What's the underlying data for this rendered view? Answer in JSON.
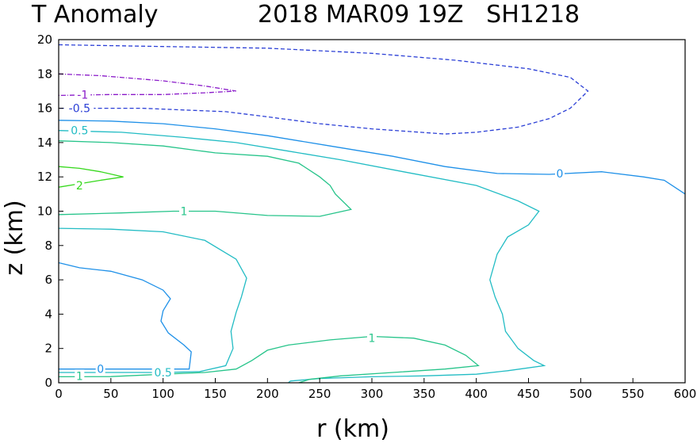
{
  "chart_data": {
    "type": "contour",
    "title_left": "T Anomaly",
    "title_right": "2018 MAR09 19Z   SH1218",
    "xlabel": "r (km)",
    "ylabel": "z (km)",
    "xlim": [
      0,
      600
    ],
    "ylim": [
      0,
      20
    ],
    "xticks": [
      "0",
      "50",
      "100",
      "150",
      "200",
      "250",
      "300",
      "350",
      "400",
      "450",
      "500",
      "550",
      "600"
    ],
    "yticks": [
      "0",
      "2",
      "4",
      "6",
      "8",
      "10",
      "12",
      "14",
      "16",
      "18",
      "20"
    ],
    "contours": [
      {
        "level": "-0.5",
        "color": "#2b3fd6",
        "dash": "5,3",
        "paths": [
          [
            [
              0,
              19.7
            ],
            [
              50,
              19.65
            ],
            [
              100,
              19.6
            ],
            [
              200,
              19.5
            ],
            [
              300,
              19.2
            ],
            [
              380,
              18.8
            ],
            [
              450,
              18.3
            ],
            [
              490,
              17.8
            ],
            [
              507,
              17.0
            ],
            [
              490,
              16.0
            ],
            [
              470,
              15.4
            ],
            [
              440,
              14.9
            ],
            [
              400,
              14.6
            ],
            [
              370,
              14.5
            ],
            [
              300,
              14.8
            ],
            [
              250,
              15.1
            ],
            [
              200,
              15.5
            ],
            [
              160,
              15.8
            ],
            [
              120,
              15.9
            ],
            [
              80,
              16.0
            ],
            [
              0,
              16.0
            ]
          ]
        ],
        "labels": [
          {
            "x": 20,
            "y": 16.0,
            "text": "-0.5"
          }
        ]
      },
      {
        "level": "-1",
        "color": "#8a1ac9",
        "dash": "6,2,1,2",
        "paths": [
          [
            [
              0,
              18.0
            ],
            [
              40,
              17.9
            ],
            [
              100,
              17.6
            ],
            [
              140,
              17.3
            ],
            [
              170,
              17.0
            ],
            [
              140,
              16.9
            ],
            [
              100,
              16.8
            ],
            [
              50,
              16.8
            ],
            [
              0,
              16.75
            ]
          ]
        ],
        "labels": [
          {
            "x": 23,
            "y": 16.8,
            "text": "-1"
          }
        ]
      },
      {
        "level": "0",
        "color": "#1e90e8",
        "dash": "",
        "paths": [
          [
            [
              0,
              15.3
            ],
            [
              50,
              15.25
            ],
            [
              100,
              15.1
            ],
            [
              150,
              14.8
            ],
            [
              200,
              14.4
            ],
            [
              260,
              13.8
            ],
            [
              320,
              13.2
            ],
            [
              370,
              12.6
            ],
            [
              420,
              12.2
            ],
            [
              470,
              12.15
            ],
            [
              520,
              12.3
            ],
            [
              560,
              12.0
            ],
            [
              580,
              11.8
            ],
            [
              600,
              11.0
            ]
          ],
          [
            [
              0,
              7.0
            ],
            [
              20,
              6.7
            ],
            [
              50,
              6.5
            ],
            [
              80,
              6.0
            ],
            [
              100,
              5.4
            ],
            [
              107,
              4.9
            ],
            [
              100,
              4.2
            ],
            [
              98,
              3.6
            ],
            [
              105,
              2.9
            ],
            [
              120,
              2.2
            ],
            [
              127,
              1.8
            ],
            [
              125,
              0.8
            ],
            [
              100,
              0.8
            ],
            [
              60,
              0.8
            ],
            [
              20,
              0.8
            ],
            [
              0,
              0.8
            ]
          ]
        ],
        "labels": [
          {
            "x": 480,
            "y": 12.2,
            "text": "0"
          },
          {
            "x": 40,
            "y": 0.8,
            "text": "0"
          }
        ]
      },
      {
        "level": "0.5",
        "color": "#22bcc4",
        "dash": "",
        "paths": [
          [
            [
              0,
              14.7
            ],
            [
              60,
              14.6
            ],
            [
              120,
              14.3
            ],
            [
              170,
              14.0
            ],
            [
              220,
              13.5
            ],
            [
              270,
              13.0
            ],
            [
              330,
              12.3
            ],
            [
              400,
              11.5
            ],
            [
              440,
              10.6
            ],
            [
              460,
              10.0
            ],
            [
              450,
              9.2
            ],
            [
              430,
              8.5
            ],
            [
              420,
              7.5
            ],
            [
              413,
              6.0
            ],
            [
              418,
              5.0
            ],
            [
              425,
              4.0
            ],
            [
              428,
              3.0
            ],
            [
              440,
              2.0
            ],
            [
              455,
              1.3
            ],
            [
              465,
              1.0
            ],
            [
              430,
              0.7
            ],
            [
              400,
              0.5
            ],
            [
              350,
              0.4
            ],
            [
              300,
              0.35
            ],
            [
              250,
              0.25
            ],
            [
              222,
              0.1
            ],
            [
              220,
              0
            ]
          ],
          [
            [
              0,
              9.0
            ],
            [
              50,
              8.95
            ],
            [
              100,
              8.8
            ],
            [
              140,
              8.3
            ],
            [
              170,
              7.2
            ],
            [
              180,
              6.1
            ],
            [
              175,
              5.0
            ],
            [
              170,
              4.1
            ],
            [
              165,
              3.0
            ],
            [
              167,
              2.0
            ],
            [
              160,
              1.0
            ],
            [
              135,
              0.65
            ],
            [
              100,
              0.6
            ],
            [
              50,
              0.6
            ],
            [
              0,
              0.6
            ]
          ]
        ],
        "labels": [
          {
            "x": 20,
            "y": 14.7,
            "text": "0.5"
          },
          {
            "x": 100,
            "y": 0.6,
            "text": "0.5"
          }
        ]
      },
      {
        "level": "1",
        "color": "#26c48a",
        "dash": "",
        "paths": [
          [
            [
              0,
              14.1
            ],
            [
              50,
              14.0
            ],
            [
              100,
              13.8
            ],
            [
              150,
              13.4
            ],
            [
              200,
              13.2
            ],
            [
              230,
              12.8
            ],
            [
              250,
              12.0
            ],
            [
              260,
              11.5
            ],
            [
              265,
              11.0
            ],
            [
              280,
              10.1
            ],
            [
              250,
              9.7
            ],
            [
              200,
              9.75
            ],
            [
              150,
              10.0
            ],
            [
              110,
              10.0
            ],
            [
              60,
              9.9
            ],
            [
              0,
              9.8
            ]
          ],
          [
            [
              0,
              0.35
            ],
            [
              50,
              0.36
            ],
            [
              100,
              0.5
            ],
            [
              140,
              0.6
            ],
            [
              170,
              0.8
            ],
            [
              185,
              1.3
            ],
            [
              200,
              1.9
            ],
            [
              220,
              2.2
            ],
            [
              260,
              2.5
            ],
            [
              300,
              2.7
            ],
            [
              340,
              2.6
            ],
            [
              370,
              2.2
            ],
            [
              390,
              1.6
            ],
            [
              402,
              1.0
            ],
            [
              370,
              0.8
            ],
            [
              320,
              0.6
            ],
            [
              270,
              0.4
            ],
            [
              240,
              0.2
            ],
            [
              230,
              0
            ]
          ]
        ],
        "labels": [
          {
            "x": 120,
            "y": 10.0,
            "text": "1"
          },
          {
            "x": 300,
            "y": 2.6,
            "text": "1"
          },
          {
            "x": 20,
            "y": 0.4,
            "text": "1"
          }
        ]
      },
      {
        "level": "2",
        "color": "#36d81c",
        "dash": "",
        "paths": [
          [
            [
              0,
              12.6
            ],
            [
              20,
              12.5
            ],
            [
              40,
              12.3
            ],
            [
              62,
              12.0
            ],
            [
              40,
              11.8
            ],
            [
              20,
              11.6
            ],
            [
              0,
              11.4
            ]
          ]
        ],
        "labels": [
          {
            "x": 20,
            "y": 11.5,
            "text": "2"
          }
        ]
      }
    ]
  }
}
